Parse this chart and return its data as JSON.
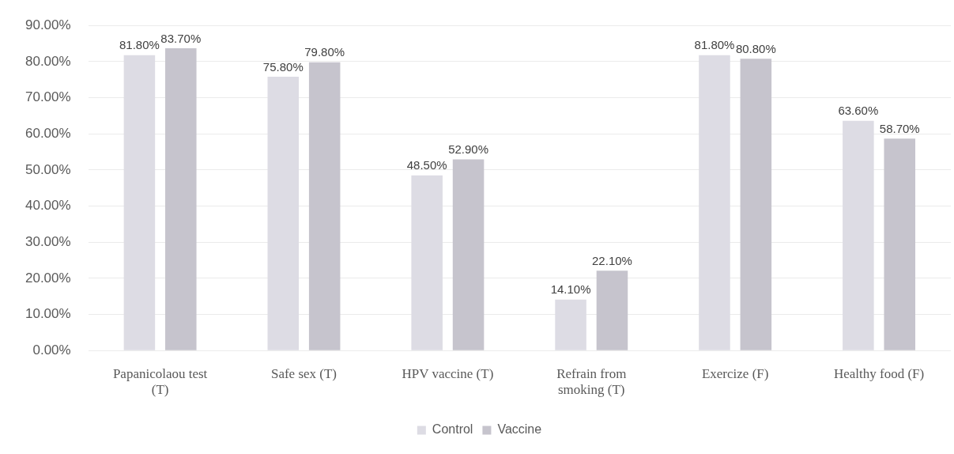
{
  "chart_data": {
    "type": "bar",
    "categories": [
      "Papanicolaou test (T)",
      "Safe sex (T)",
      "HPV vaccine (T)",
      "Refrain from smoking (T)",
      "Exercize (F)",
      "Healthy food (F)"
    ],
    "series": [
      {
        "name": "Control",
        "color": "#dddce4",
        "values": [
          81.8,
          75.8,
          48.5,
          14.1,
          81.8,
          63.6
        ],
        "value_labels": [
          "81.80%",
          "75.80%",
          "48.50%",
          "14.10%",
          "81.80%",
          "63.60%"
        ]
      },
      {
        "name": "Vaccine",
        "color": "#c6c4cd",
        "values": [
          83.7,
          79.8,
          52.9,
          22.1,
          80.8,
          58.7
        ],
        "value_labels": [
          "83.70%",
          "79.80%",
          "52.90%",
          "22.10%",
          "80.80%",
          "58.70%"
        ]
      }
    ],
    "ylim": [
      0,
      90
    ],
    "yticks": [
      {
        "value": 0,
        "label": "0.00%"
      },
      {
        "value": 10,
        "label": "10.00%"
      },
      {
        "value": 20,
        "label": "20.00%"
      },
      {
        "value": 30,
        "label": "30.00%"
      },
      {
        "value": 40,
        "label": "40.00%"
      },
      {
        "value": 50,
        "label": "50.00%"
      },
      {
        "value": 60,
        "label": "60.00%"
      },
      {
        "value": 70,
        "label": "70.00%"
      },
      {
        "value": 80,
        "label": "80.00%"
      },
      {
        "value": 90,
        "label": "90.00%"
      }
    ],
    "grid": "y",
    "legend": "bottom"
  }
}
